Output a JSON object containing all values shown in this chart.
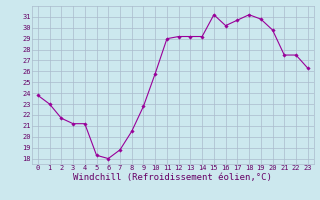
{
  "x": [
    0,
    1,
    2,
    3,
    4,
    5,
    6,
    7,
    8,
    9,
    10,
    11,
    12,
    13,
    14,
    15,
    16,
    17,
    18,
    19,
    20,
    21,
    22,
    23
  ],
  "y": [
    23.8,
    23.0,
    21.7,
    21.2,
    21.2,
    18.3,
    18.0,
    18.8,
    20.5,
    22.8,
    25.8,
    29.0,
    29.2,
    29.2,
    29.2,
    31.2,
    30.2,
    30.7,
    31.2,
    30.8,
    29.8,
    27.5,
    27.5,
    26.3
  ],
  "line_color": "#990099",
  "marker": "D",
  "markersize": 1.8,
  "linewidth": 0.8,
  "xlabel": "Windchill (Refroidissement éolien,°C)",
  "xlim": [
    -0.5,
    23.5
  ],
  "ylim": [
    17.5,
    32.0
  ],
  "yticks": [
    18,
    19,
    20,
    21,
    22,
    23,
    24,
    25,
    26,
    27,
    28,
    29,
    30,
    31
  ],
  "xticks": [
    0,
    1,
    2,
    3,
    4,
    5,
    6,
    7,
    8,
    9,
    10,
    11,
    12,
    13,
    14,
    15,
    16,
    17,
    18,
    19,
    20,
    21,
    22,
    23
  ],
  "bg_color": "#cce8ee",
  "grid_color": "#aabbcc",
  "tick_label_fontsize": 5.0,
  "xlabel_fontsize": 6.5,
  "label_color": "#660066"
}
